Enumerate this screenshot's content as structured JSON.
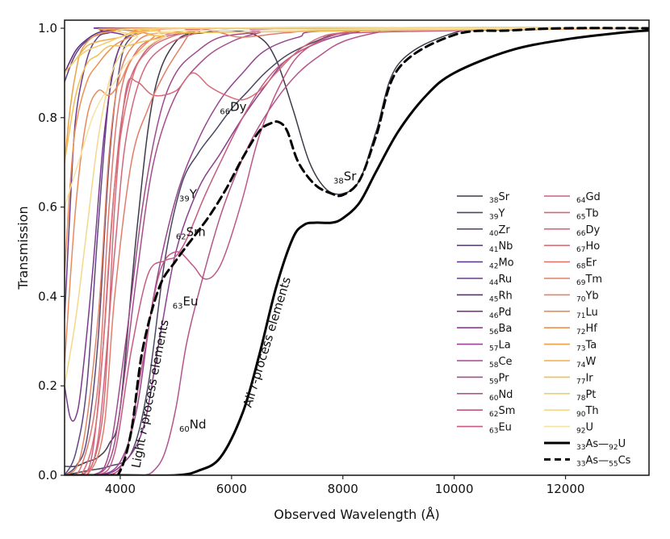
{
  "chart_data": {
    "type": "line",
    "title": "",
    "xlabel": "Observed Wavelength (Å)",
    "ylabel": "Transmission",
    "xlim": [
      3000,
      13500
    ],
    "ylim": [
      0.0,
      1.0
    ],
    "xticks": [
      4000,
      6000,
      8000,
      10000,
      12000
    ],
    "yticks": [
      0.0,
      0.2,
      0.4,
      0.6,
      0.8,
      1.0
    ],
    "xtick_labels": [
      "4000",
      "6000",
      "8000",
      "10000",
      "12000"
    ],
    "ytick_labels": [
      "0.0",
      "0.2",
      "0.4",
      "0.6",
      "0.8",
      "1.0"
    ],
    "grid": false,
    "legend_location": "center-right",
    "series": [
      {
        "name": "Sr",
        "z": "38",
        "color": "#3d3a4a",
        "x": [
          3000,
          3200,
          3400,
          3600,
          3800,
          4000,
          4300,
          4600,
          5000,
          5500,
          6000,
          6500,
          6800,
          7100,
          7400,
          7700,
          8000,
          8300,
          8600,
          9000,
          10000,
          11000,
          12000,
          13500
        ],
        "y": [
          0.02,
          0.02,
          0.03,
          0.04,
          0.07,
          0.15,
          0.55,
          0.85,
          0.97,
          0.99,
          0.995,
          0.98,
          0.93,
          0.82,
          0.7,
          0.64,
          0.63,
          0.66,
          0.77,
          0.92,
          0.99,
          1.0,
          1.0,
          1.0
        ]
      },
      {
        "name": "Y",
        "z": "39",
        "color": "#4c4760",
        "x": [
          3000,
          3400,
          3800,
          4200,
          4500,
          4800,
          5100,
          5400,
          5700,
          6000,
          6300,
          6600,
          7000,
          7500,
          8000,
          9000,
          10000,
          13500
        ],
        "y": [
          0.0,
          0.01,
          0.02,
          0.05,
          0.2,
          0.48,
          0.65,
          0.72,
          0.77,
          0.82,
          0.86,
          0.9,
          0.94,
          0.97,
          0.99,
          1.0,
          1.0,
          1.0
        ]
      },
      {
        "name": "Zr",
        "z": "40",
        "color": "#5a4a78",
        "x": [
          3000,
          3200,
          3400,
          3600,
          3800,
          4000,
          4200,
          4500,
          5000,
          13500
        ],
        "y": [
          0.0,
          0.02,
          0.08,
          0.3,
          0.7,
          0.92,
          0.98,
          0.995,
          1.0,
          1.0
        ]
      },
      {
        "name": "Nb",
        "z": "41",
        "color": "#5e4583",
        "x": [
          3000,
          3200,
          3400,
          3600,
          3800,
          4000,
          4300,
          4800,
          13500
        ],
        "y": [
          0.0,
          0.05,
          0.2,
          0.55,
          0.85,
          0.96,
          0.99,
          1.0,
          1.0
        ]
      },
      {
        "name": "Mo",
        "z": "42",
        "color": "#613f8b",
        "x": [
          3000,
          3150,
          3300,
          3500,
          3700,
          3900,
          4100,
          4400,
          13500
        ],
        "y": [
          0.88,
          0.93,
          0.96,
          0.98,
          0.99,
          0.995,
          1.0,
          1.0,
          1.0
        ]
      },
      {
        "name": "Ru",
        "z": "44",
        "color": "#6c3b8e",
        "x": [
          3000,
          3100,
          3200,
          3400,
          3600,
          3800,
          4000,
          4300,
          13500
        ],
        "y": [
          0.35,
          0.6,
          0.8,
          0.93,
          0.98,
          0.99,
          1.0,
          1.0,
          1.0
        ]
      },
      {
        "name": "Rh",
        "z": "45",
        "color": "#5d2c7d",
        "x": [
          3000,
          3200,
          3400,
          3600,
          3800,
          4000,
          4300,
          13500
        ],
        "y": [
          0.9,
          0.95,
          0.975,
          0.99,
          0.995,
          1.0,
          1.0,
          1.0
        ]
      },
      {
        "name": "Pd",
        "z": "46",
        "color": "#7a3a8e",
        "x": [
          3000,
          3100,
          3200,
          3300,
          3500,
          3700,
          3900,
          4100,
          4400,
          13500
        ],
        "y": [
          0.2,
          0.13,
          0.13,
          0.2,
          0.45,
          0.75,
          0.92,
          0.98,
          1.0,
          1.0
        ]
      },
      {
        "name": "Ba",
        "z": "56",
        "color": "#8a3f8f",
        "x": [
          3000,
          3600,
          4000,
          4400,
          4700,
          5000,
          5400,
          5800,
          6200,
          6600,
          7000,
          7600,
          8200,
          9000,
          13500
        ],
        "y": [
          0.0,
          0.0,
          0.02,
          0.1,
          0.3,
          0.5,
          0.64,
          0.72,
          0.8,
          0.87,
          0.93,
          0.97,
          0.99,
          1.0,
          1.0
        ]
      },
      {
        "name": "La",
        "z": "57",
        "color": "#96448f",
        "x": [
          3000,
          3600,
          4000,
          4300,
          4600,
          5000,
          5400,
          5800,
          6200,
          6600,
          7200,
          8000,
          13500
        ],
        "y": [
          0.0,
          0.0,
          0.03,
          0.15,
          0.4,
          0.62,
          0.75,
          0.84,
          0.9,
          0.95,
          0.98,
          0.995,
          1.0
        ]
      },
      {
        "name": "Ce",
        "z": "58",
        "color": "#a04a8e",
        "x": [
          3000,
          3500,
          3800,
          4100,
          4400,
          4700,
          5000,
          5400,
          5800,
          6400,
          7000,
          13500
        ],
        "y": [
          0.0,
          0.0,
          0.05,
          0.3,
          0.6,
          0.8,
          0.9,
          0.95,
          0.98,
          0.99,
          1.0,
          1.0
        ]
      },
      {
        "name": "Pr",
        "z": "59",
        "color": "#a84d8c",
        "x": [
          3000,
          3500,
          3800,
          4000,
          4300,
          4600,
          5000,
          5500,
          6000,
          6500,
          7000,
          13500
        ],
        "y": [
          0.0,
          0.0,
          0.03,
          0.15,
          0.45,
          0.7,
          0.85,
          0.93,
          0.97,
          0.99,
          1.0,
          1.0
        ]
      },
      {
        "name": "Nd",
        "z": "60",
        "color": "#b4548a",
        "x": [
          3000,
          4000,
          4400,
          4600,
          4800,
          5000,
          5200,
          5500,
          5800,
          6100,
          6400,
          6800,
          7200,
          7600,
          8000,
          8600,
          9200,
          13500
        ],
        "y": [
          0.0,
          0.0,
          0.0,
          0.01,
          0.05,
          0.15,
          0.3,
          0.45,
          0.58,
          0.68,
          0.76,
          0.84,
          0.9,
          0.94,
          0.97,
          0.99,
          1.0,
          1.0
        ]
      },
      {
        "name": "Sm",
        "z": "62",
        "color": "#bd5787",
        "x": [
          3000,
          3800,
          4100,
          4400,
          4700,
          5000,
          5300,
          5500,
          5700,
          5900,
          6200,
          6500,
          6900,
          7300,
          8000,
          9000,
          13500
        ],
        "y": [
          0.0,
          0.0,
          0.05,
          0.25,
          0.45,
          0.5,
          0.47,
          0.44,
          0.45,
          0.5,
          0.62,
          0.76,
          0.88,
          0.95,
          0.99,
          1.0,
          1.0
        ]
      },
      {
        "name": "Eu",
        "z": "63",
        "color": "#c55b84",
        "x": [
          3000,
          3600,
          3900,
          4200,
          4500,
          4800,
          5000,
          5200,
          5500,
          5800,
          6200,
          6600,
          7000,
          7600,
          8300,
          13500
        ],
        "y": [
          0.0,
          0.0,
          0.05,
          0.28,
          0.45,
          0.48,
          0.49,
          0.53,
          0.62,
          0.7,
          0.8,
          0.88,
          0.93,
          0.97,
          0.99,
          1.0
        ]
      },
      {
        "name": "Gd",
        "z": "64",
        "color": "#cc6080",
        "x": [
          3000,
          3300,
          3500,
          3700,
          3900,
          4100,
          4400,
          4800,
          5300,
          6000,
          13500
        ],
        "y": [
          0.0,
          0.0,
          0.05,
          0.3,
          0.65,
          0.85,
          0.94,
          0.98,
          0.99,
          1.0,
          1.0
        ]
      },
      {
        "name": "Tb",
        "z": "65",
        "color": "#d2667c",
        "x": [
          3000,
          3300,
          3600,
          3900,
          4100,
          4400,
          4800,
          5400,
          6000,
          13500
        ],
        "y": [
          0.0,
          0.0,
          0.08,
          0.5,
          0.75,
          0.9,
          0.96,
          0.99,
          1.0,
          1.0
        ]
      },
      {
        "name": "Dy",
        "z": "66",
        "color": "#d66b78",
        "x": [
          3000,
          3400,
          3700,
          3900,
          4100,
          4300,
          4600,
          5000,
          5300,
          5600,
          5900,
          6200,
          6500,
          6800,
          7200,
          7600,
          8000,
          9000,
          13500
        ],
        "y": [
          0.0,
          0.0,
          0.15,
          0.6,
          0.86,
          0.88,
          0.85,
          0.86,
          0.9,
          0.87,
          0.85,
          0.84,
          0.86,
          0.9,
          0.95,
          0.98,
          0.99,
          1.0,
          1.0
        ]
      },
      {
        "name": "Ho",
        "z": "67",
        "color": "#db7074",
        "x": [
          3000,
          3300,
          3600,
          3900,
          4200,
          4500,
          4900,
          5400,
          6000,
          13500
        ],
        "y": [
          0.0,
          0.0,
          0.15,
          0.65,
          0.88,
          0.95,
          0.98,
          0.995,
          1.0,
          1.0
        ]
      },
      {
        "name": "Er",
        "z": "68",
        "color": "#df776f",
        "x": [
          3000,
          3300,
          3600,
          3800,
          4000,
          4300,
          4700,
          5200,
          6000,
          13500
        ],
        "y": [
          0.0,
          0.02,
          0.2,
          0.6,
          0.85,
          0.95,
          0.98,
          0.995,
          1.0,
          1.0
        ]
      },
      {
        "name": "Tm",
        "z": "69",
        "color": "#e27d69",
        "x": [
          3000,
          3400,
          3700,
          3900,
          4200,
          4500,
          4800,
          5100,
          5300,
          5500,
          5800,
          6200,
          7000,
          8000,
          13500
        ],
        "y": [
          0.0,
          0.0,
          0.1,
          0.4,
          0.7,
          0.82,
          0.9,
          0.96,
          0.995,
          0.998,
          0.99,
          0.98,
          0.99,
          0.995,
          1.0
        ]
      },
      {
        "name": "Yb",
        "z": "70",
        "color": "#e58464",
        "x": [
          3000,
          3300,
          3600,
          3800,
          4000,
          4300,
          4700,
          5500,
          13500
        ],
        "y": [
          0.0,
          0.05,
          0.35,
          0.72,
          0.9,
          0.97,
          0.99,
          1.0,
          1.0
        ]
      },
      {
        "name": "Lu",
        "z": "71",
        "color": "#e98b5c",
        "x": [
          3000,
          3200,
          3400,
          3600,
          3800,
          4000,
          4200,
          4600,
          5000,
          13500
        ],
        "y": [
          0.25,
          0.6,
          0.8,
          0.86,
          0.85,
          0.88,
          0.93,
          0.98,
          1.0,
          1.0
        ]
      },
      {
        "name": "Hf",
        "z": "72",
        "color": "#ec9254",
        "x": [
          3000,
          3100,
          3200,
          3400,
          3600,
          3800,
          4000,
          4400,
          4800,
          13500
        ],
        "y": [
          0.45,
          0.65,
          0.78,
          0.88,
          0.92,
          0.95,
          0.97,
          0.99,
          1.0,
          1.0
        ]
      },
      {
        "name": "Ta",
        "z": "73",
        "color": "#eea048",
        "x": [
          3000,
          3100,
          3200,
          3300,
          3500,
          3700,
          4000,
          4400,
          13500
        ],
        "y": [
          0.7,
          0.82,
          0.9,
          0.95,
          0.98,
          0.99,
          0.995,
          1.0,
          1.0
        ]
      },
      {
        "name": "W",
        "z": "74",
        "color": "#f0ad47",
        "x": [
          3000,
          3200,
          3400,
          3600,
          3800,
          4000,
          4200,
          4500,
          5000,
          13500
        ],
        "y": [
          0.9,
          0.93,
          0.96,
          0.97,
          0.975,
          0.98,
          0.99,
          0.995,
          1.0,
          1.0
        ]
      },
      {
        "name": "Ir",
        "z": "77",
        "color": "#f2bf55",
        "x": [
          3000,
          3200,
          3400,
          3600,
          3800,
          4100,
          4400,
          4800,
          5200,
          13500
        ],
        "y": [
          0.7,
          0.85,
          0.92,
          0.94,
          0.96,
          0.96,
          0.97,
          0.98,
          0.99,
          1.0
        ]
      },
      {
        "name": "Pt",
        "z": "78",
        "color": "#f3cc6a",
        "x": [
          3000,
          3200,
          3400,
          3600,
          3800,
          4000,
          4300,
          4700,
          5200,
          13500
        ],
        "y": [
          0.9,
          0.93,
          0.95,
          0.96,
          0.97,
          0.98,
          0.99,
          0.995,
          1.0,
          1.0
        ]
      },
      {
        "name": "Th",
        "z": "90",
        "color": "#f4d88a",
        "x": [
          3000,
          3200,
          3400,
          3600,
          3800,
          4000,
          4300,
          4700,
          13500
        ],
        "y": [
          0.2,
          0.35,
          0.55,
          0.75,
          0.88,
          0.94,
          0.98,
          1.0,
          1.0
        ]
      },
      {
        "name": "U",
        "z": "92",
        "color": "#f3e3a6",
        "x": [
          3000,
          3300,
          3500,
          3700,
          3900,
          4100,
          4400,
          4800,
          5500,
          13500
        ],
        "y": [
          0.6,
          0.72,
          0.8,
          0.85,
          0.88,
          0.92,
          0.95,
          0.98,
          0.995,
          1.0
        ]
      },
      {
        "name": "As—U",
        "z1": "33",
        "z2": "92",
        "el1": "As",
        "el2": "U",
        "color": "#000000",
        "style": "solid",
        "width": 3,
        "x": [
          3000,
          4000,
          5000,
          5400,
          5800,
          6200,
          6500,
          6800,
          7100,
          7300,
          7500,
          7800,
          8000,
          8300,
          8600,
          9000,
          9500,
          10000,
          11000,
          12000,
          13000,
          13500
        ],
        "y": [
          0.0,
          0.0,
          0.0,
          0.01,
          0.04,
          0.14,
          0.27,
          0.42,
          0.53,
          0.56,
          0.565,
          0.565,
          0.575,
          0.61,
          0.68,
          0.77,
          0.85,
          0.9,
          0.95,
          0.975,
          0.99,
          0.995
        ]
      },
      {
        "name": "As—Cs",
        "z1": "33",
        "z2": "55",
        "el1": "As",
        "el2": "Cs",
        "color": "#000000",
        "style": "dashed",
        "width": 3,
        "x": [
          3000,
          3800,
          4000,
          4200,
          4400,
          4700,
          5000,
          5300,
          5600,
          5900,
          6200,
          6500,
          6700,
          6850,
          7000,
          7200,
          7500,
          7800,
          8000,
          8300,
          8600,
          9000,
          10000,
          11000,
          12000,
          13500
        ],
        "y": [
          0.0,
          0.0,
          0.01,
          0.1,
          0.28,
          0.42,
          0.48,
          0.53,
          0.58,
          0.64,
          0.71,
          0.77,
          0.787,
          0.79,
          0.77,
          0.7,
          0.65,
          0.63,
          0.627,
          0.66,
          0.76,
          0.91,
          0.985,
          0.995,
          1.0,
          1.0
        ]
      }
    ],
    "annotations": [
      {
        "sub": "38",
        "el": "Sr",
        "x": 7830,
        "y": 0.66
      },
      {
        "sub": "66",
        "el": "Dy",
        "x": 5790,
        "y": 0.815
      },
      {
        "sub": "39",
        "el": "Y",
        "x": 5060,
        "y": 0.62
      },
      {
        "sub": "62",
        "el": "Sm",
        "x": 5000,
        "y": 0.535
      },
      {
        "sub": "63",
        "el": "Eu",
        "x": 4940,
        "y": 0.38
      },
      {
        "sub": "60",
        "el": "Nd",
        "x": 5060,
        "y": 0.105
      }
    ],
    "labels": [
      {
        "pre": "Light ",
        "it": "r",
        "post": "-process elements",
        "x": 4350,
        "y": 0.015,
        "angle": -79
      },
      {
        "pre": "All ",
        "it": "r",
        "post": "-process elements",
        "x": 6350,
        "y": 0.15,
        "angle": -73
      }
    ]
  }
}
